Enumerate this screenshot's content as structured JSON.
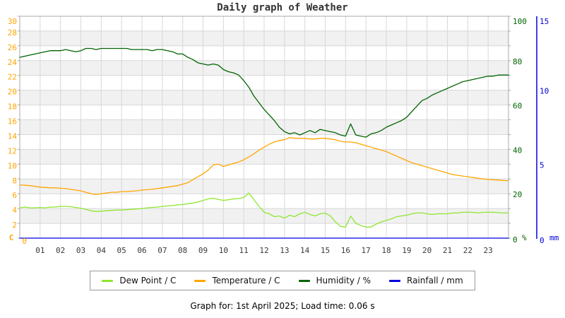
{
  "title": "Daily graph of Weather",
  "footer": "Graph for: 1st April 2025; Load time: 0.06 s",
  "colors": {
    "plot_border": "#a8a8a8",
    "grid": "#d8d8d8",
    "band": "#f1f1f1",
    "left_axis": "#ffa500",
    "humidity_axis": "#006400",
    "rain_axis": "#0000dd",
    "x_labels": "#3a3a3a",
    "dew_point": "#8fe62e",
    "temperature": "#ffa500",
    "humidity": "#006400",
    "rainfall": "#0000dd"
  },
  "chart_data": {
    "type": "line",
    "title": "Daily graph of Weather",
    "grid": true,
    "legend_position": "bottom",
    "x_axis": {
      "unit": "hour of day",
      "range": [
        0,
        24
      ],
      "tick_labels": [
        "01",
        "02",
        "03",
        "04",
        "05",
        "06",
        "07",
        "08",
        "09",
        "10",
        "11",
        "12",
        "13",
        "14",
        "15",
        "16",
        "17",
        "18",
        "19",
        "20",
        "21",
        "22",
        "23"
      ]
    },
    "y_axis_left": {
      "unit": "C",
      "min": 0,
      "max": 30,
      "tick_step": 2
    },
    "y_axis_right_humidity": {
      "unit": "%",
      "min": 0,
      "max": 100,
      "ticks": [
        0,
        20,
        40,
        60,
        80,
        100
      ]
    },
    "y_axis_right_rain": {
      "unit": "mm",
      "min": 0,
      "max": 15,
      "ticks": [
        0,
        5,
        10,
        15
      ]
    },
    "series": [
      {
        "name": "Dew Point / C",
        "color": "#8fe62e",
        "axis": "temp",
        "step_hours": 0.25,
        "values": [
          4.1,
          4.2,
          4.1,
          4.1,
          4.15,
          4.1,
          4.2,
          4.2,
          4.3,
          4.3,
          4.25,
          4.15,
          4.05,
          3.9,
          3.7,
          3.6,
          3.65,
          3.7,
          3.75,
          3.8,
          3.8,
          3.85,
          3.9,
          3.95,
          4.0,
          4.1,
          4.15,
          4.2,
          4.3,
          4.35,
          4.4,
          4.5,
          4.55,
          4.65,
          4.75,
          4.9,
          5.1,
          5.3,
          5.4,
          5.25,
          5.1,
          5.2,
          5.3,
          5.35,
          5.5,
          6.1,
          5.2,
          4.3,
          3.5,
          3.3,
          2.9,
          3.0,
          2.7,
          3.1,
          2.9,
          3.3,
          3.5,
          3.2,
          3.0,
          3.3,
          3.4,
          3.0,
          2.2,
          1.6,
          1.5,
          3.0,
          2.0,
          1.7,
          1.5,
          1.5,
          1.9,
          2.2,
          2.4,
          2.6,
          2.9,
          3.0,
          3.1,
          3.3,
          3.4,
          3.4,
          3.3,
          3.2,
          3.3,
          3.3,
          3.3,
          3.4,
          3.4,
          3.5,
          3.5,
          3.5,
          3.4,
          3.5,
          3.5,
          3.5,
          3.45,
          3.4,
          3.4
        ]
      },
      {
        "name": "Temperature / C",
        "color": "#ffa500",
        "axis": "temp",
        "step_hours": 0.25,
        "values": [
          7.2,
          7.15,
          7.1,
          7.0,
          6.9,
          6.85,
          6.8,
          6.8,
          6.75,
          6.7,
          6.6,
          6.5,
          6.4,
          6.2,
          6.0,
          5.9,
          6.0,
          6.1,
          6.2,
          6.2,
          6.3,
          6.3,
          6.35,
          6.4,
          6.5,
          6.55,
          6.6,
          6.7,
          6.8,
          6.9,
          7.0,
          7.1,
          7.3,
          7.5,
          7.9,
          8.3,
          8.7,
          9.2,
          9.9,
          10.0,
          9.7,
          9.9,
          10.1,
          10.3,
          10.6,
          11.0,
          11.4,
          11.9,
          12.3,
          12.7,
          13.0,
          13.2,
          13.3,
          13.6,
          13.5,
          13.5,
          13.5,
          13.4,
          13.4,
          13.5,
          13.5,
          13.4,
          13.3,
          13.1,
          13.0,
          13.0,
          12.9,
          12.7,
          12.5,
          12.3,
          12.1,
          11.9,
          11.7,
          11.4,
          11.1,
          10.8,
          10.5,
          10.2,
          10.0,
          9.8,
          9.6,
          9.4,
          9.2,
          9.0,
          8.8,
          8.6,
          8.5,
          8.4,
          8.3,
          8.2,
          8.1,
          8.0,
          7.95,
          7.9,
          7.85,
          7.8,
          7.75
        ]
      },
      {
        "name": "Humidity / %",
        "color": "#006400",
        "axis": "humidity",
        "step_hours": 0.25,
        "values": [
          81.5,
          82,
          82.5,
          83,
          83.5,
          84,
          84.5,
          84.5,
          84.5,
          85,
          84.5,
          84,
          84.5,
          85.5,
          85.5,
          85,
          85.5,
          85.5,
          85.5,
          85.5,
          85.5,
          85.5,
          85,
          85,
          85,
          85,
          84.5,
          85,
          85,
          84.5,
          84,
          83,
          83,
          81.5,
          80.5,
          79,
          78.5,
          78,
          78.5,
          78,
          76,
          75,
          74.5,
          73.5,
          71,
          68,
          64,
          61,
          58,
          55.5,
          53,
          50,
          48,
          47,
          47.5,
          46.5,
          47.5,
          48.5,
          47.5,
          49,
          48.5,
          48,
          47.5,
          46.5,
          46,
          51.5,
          46.5,
          46,
          45.5,
          47,
          47.5,
          48.5,
          50,
          51,
          52,
          53,
          54.5,
          57,
          59.5,
          62,
          63,
          64.5,
          65.5,
          66.5,
          67.5,
          68.5,
          69.5,
          70.5,
          71,
          71.5,
          72,
          72.5,
          73,
          73,
          73.5,
          73.5,
          73.5
        ]
      },
      {
        "name": "Rainfall / mm",
        "color": "#0000dd",
        "axis": "rain",
        "x": [
          0,
          24
        ],
        "values": [
          0,
          0
        ]
      }
    ]
  }
}
